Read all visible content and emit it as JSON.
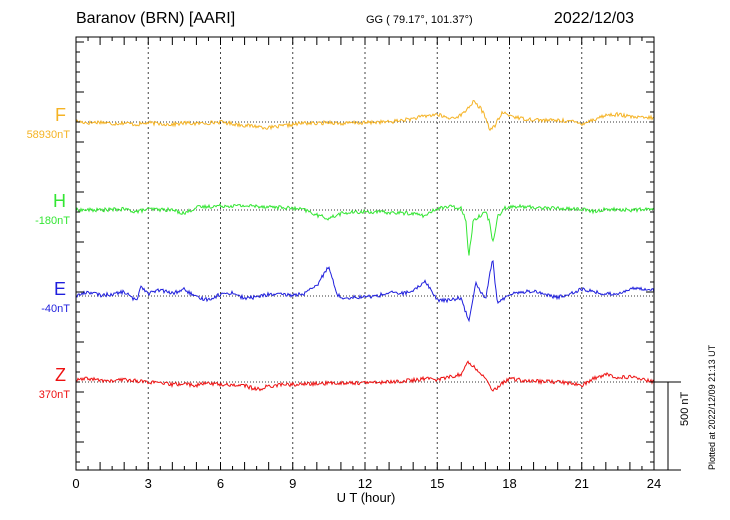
{
  "header": {
    "station": "Baranov (BRN)  [AARI]",
    "coords": "GG ( 79.17°, 101.37°)",
    "date": "2022/12/03"
  },
  "chart_data": {
    "type": "line",
    "xlabel": "U T (hour)",
    "xlim": [
      0,
      24
    ],
    "xticks": [
      0,
      3,
      6,
      9,
      12,
      15,
      18,
      21,
      24
    ],
    "scale_bar": "500 nT",
    "plotted": "Plotted at 2022/12/09 21:13 UT",
    "grid": true,
    "series": [
      {
        "name": "F",
        "baseline": "58930nT",
        "color": "#f5b324",
        "points": [
          [
            0,
            5
          ],
          [
            0.5,
            -5
          ],
          [
            1,
            0
          ],
          [
            1.5,
            -10
          ],
          [
            2,
            -5
          ],
          [
            2.5,
            -15
          ],
          [
            3,
            -5
          ],
          [
            3.5,
            -10
          ],
          [
            4,
            -15
          ],
          [
            4.5,
            -5
          ],
          [
            5,
            -10
          ],
          [
            5.5,
            -5
          ],
          [
            6,
            0
          ],
          [
            6.5,
            -10
          ],
          [
            7,
            -20
          ],
          [
            7.5,
            -25
          ],
          [
            8,
            -35
          ],
          [
            8.5,
            -25
          ],
          [
            9,
            -15
          ],
          [
            9.5,
            -5
          ],
          [
            10,
            -10
          ],
          [
            10.5,
            0
          ],
          [
            11,
            -10
          ],
          [
            11.5,
            -5
          ],
          [
            12,
            -5
          ],
          [
            12.5,
            0
          ],
          [
            13,
            0
          ],
          [
            13.5,
            10
          ],
          [
            14,
            20
          ],
          [
            14.5,
            35
          ],
          [
            15,
            45
          ],
          [
            15.5,
            20
          ],
          [
            16,
            40
          ],
          [
            16.2,
            70
          ],
          [
            16.5,
            120
          ],
          [
            16.8,
            80
          ],
          [
            17,
            30
          ],
          [
            17.2,
            -50
          ],
          [
            17.4,
            -20
          ],
          [
            17.7,
            55
          ],
          [
            18,
            40
          ],
          [
            18.5,
            20
          ],
          [
            19,
            15
          ],
          [
            19.5,
            10
          ],
          [
            20,
            10
          ],
          [
            20.5,
            5
          ],
          [
            21,
            -10
          ],
          [
            21.5,
            15
          ],
          [
            22,
            40
          ],
          [
            22.5,
            45
          ],
          [
            23,
            30
          ],
          [
            23.5,
            25
          ],
          [
            24,
            25
          ]
        ]
      },
      {
        "name": "H",
        "baseline": "-180nT",
        "color": "#33e633",
        "points": [
          [
            0,
            0
          ],
          [
            1,
            0
          ],
          [
            2,
            5
          ],
          [
            2.5,
            -10
          ],
          [
            3,
            5
          ],
          [
            4,
            0
          ],
          [
            4.5,
            -20
          ],
          [
            5,
            15
          ],
          [
            6,
            25
          ],
          [
            7,
            25
          ],
          [
            8,
            20
          ],
          [
            9,
            10
          ],
          [
            9.5,
            0
          ],
          [
            10,
            -30
          ],
          [
            10.5,
            -50
          ],
          [
            11,
            -20
          ],
          [
            12,
            -10
          ],
          [
            13,
            -15
          ],
          [
            14,
            -20
          ],
          [
            14.5,
            -35
          ],
          [
            15,
            10
          ],
          [
            15.5,
            20
          ],
          [
            16,
            10
          ],
          [
            16.2,
            -60
          ],
          [
            16.3,
            -280
          ],
          [
            16.5,
            -60
          ],
          [
            17,
            -10
          ],
          [
            17.2,
            -80
          ],
          [
            17.3,
            -200
          ],
          [
            17.5,
            -40
          ],
          [
            17.8,
            15
          ],
          [
            18.5,
            20
          ],
          [
            19,
            15
          ],
          [
            20,
            10
          ],
          [
            21,
            5
          ],
          [
            21.5,
            -10
          ],
          [
            22,
            5
          ],
          [
            23,
            0
          ],
          [
            24,
            5
          ]
        ]
      },
      {
        "name": "E",
        "baseline": "-40nT",
        "color": "#1f1fdd",
        "points": [
          [
            0,
            0
          ],
          [
            0.5,
            25
          ],
          [
            1,
            5
          ],
          [
            1.5,
            10
          ],
          [
            2,
            25
          ],
          [
            2.5,
            -30
          ],
          [
            2.7,
            60
          ],
          [
            3,
            15
          ],
          [
            3.5,
            35
          ],
          [
            4,
            15
          ],
          [
            4.5,
            40
          ],
          [
            5,
            -10
          ],
          [
            5.5,
            -20
          ],
          [
            6,
            10
          ],
          [
            6.5,
            20
          ],
          [
            7,
            -15
          ],
          [
            7.5,
            -5
          ],
          [
            8,
            10
          ],
          [
            9,
            5
          ],
          [
            9.5,
            15
          ],
          [
            10,
            60
          ],
          [
            10.5,
            180
          ],
          [
            10.8,
            20
          ],
          [
            11,
            -10
          ],
          [
            12,
            -5
          ],
          [
            12.5,
            0
          ],
          [
            13,
            20
          ],
          [
            13.5,
            15
          ],
          [
            14,
            25
          ],
          [
            14.5,
            90
          ],
          [
            15,
            -25
          ],
          [
            15.5,
            -25
          ],
          [
            16,
            -10
          ],
          [
            16.3,
            -150
          ],
          [
            16.6,
            80
          ],
          [
            17,
            -20
          ],
          [
            17.3,
            220
          ],
          [
            17.5,
            -50
          ],
          [
            18,
            15
          ],
          [
            19,
            30
          ],
          [
            20,
            -10
          ],
          [
            21,
            40
          ],
          [
            22,
            10
          ],
          [
            22.5,
            15
          ],
          [
            23,
            40
          ],
          [
            23.5,
            45
          ],
          [
            24,
            35
          ]
        ]
      },
      {
        "name": "Z",
        "baseline": "370nT",
        "color": "#ee1111",
        "points": [
          [
            0,
            10
          ],
          [
            0.5,
            20
          ],
          [
            1,
            10
          ],
          [
            1.5,
            5
          ],
          [
            2,
            15
          ],
          [
            3,
            0
          ],
          [
            4,
            -15
          ],
          [
            4.5,
            -10
          ],
          [
            5,
            -20
          ],
          [
            5.5,
            -5
          ],
          [
            6,
            -15
          ],
          [
            7,
            -20
          ],
          [
            7.5,
            -45
          ],
          [
            8,
            -25
          ],
          [
            8.5,
            -15
          ],
          [
            9,
            -15
          ],
          [
            10,
            -10
          ],
          [
            11,
            -5
          ],
          [
            12,
            -5
          ],
          [
            13,
            0
          ],
          [
            14,
            10
          ],
          [
            14.5,
            20
          ],
          [
            15,
            15
          ],
          [
            16,
            45
          ],
          [
            16.3,
            120
          ],
          [
            16.6,
            80
          ],
          [
            17,
            30
          ],
          [
            17.3,
            -60
          ],
          [
            17.5,
            -30
          ],
          [
            18,
            20
          ],
          [
            18.5,
            10
          ],
          [
            19,
            5
          ],
          [
            20,
            0
          ],
          [
            20.5,
            -5
          ],
          [
            21,
            -20
          ],
          [
            21.5,
            20
          ],
          [
            22,
            45
          ],
          [
            22.5,
            25
          ],
          [
            23,
            30
          ],
          [
            24,
            0
          ]
        ]
      }
    ]
  }
}
